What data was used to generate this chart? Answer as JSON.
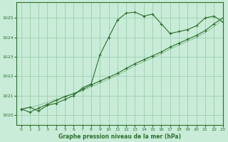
{
  "background_color": "#c8ecd8",
  "grid_color": "#9ecfb0",
  "line_color": "#2d6e2d",
  "title": "Graphe pression niveau de la mer (hPa)",
  "xlim": [
    -0.5,
    23
  ],
  "ylim": [
    1019.5,
    1025.8
  ],
  "yticks": [
    1020,
    1021,
    1022,
    1023,
    1024,
    1025
  ],
  "xticks": [
    0,
    1,
    2,
    3,
    4,
    5,
    6,
    7,
    8,
    9,
    10,
    11,
    12,
    13,
    14,
    15,
    16,
    17,
    18,
    19,
    20,
    21,
    22,
    23
  ],
  "series1_x": [
    0,
    1,
    2,
    3,
    4,
    5,
    6,
    7,
    8,
    9,
    10,
    11,
    12,
    13,
    14,
    15,
    16,
    17,
    18,
    19,
    20,
    21,
    22,
    23
  ],
  "series1_y": [
    1020.3,
    1020.4,
    1020.2,
    1020.5,
    1020.6,
    1020.8,
    1021.0,
    1021.4,
    1021.6,
    1023.1,
    1024.0,
    1024.9,
    1025.25,
    1025.3,
    1025.1,
    1025.2,
    1024.7,
    1024.2,
    1024.3,
    1024.4,
    1024.6,
    1025.0,
    1025.1,
    1024.8
  ],
  "series2_x": [
    0,
    1,
    2,
    3,
    4,
    5,
    6,
    7,
    8,
    9,
    10,
    11,
    12,
    13,
    14,
    15,
    16,
    17,
    18,
    19,
    20,
    21,
    22,
    23
  ],
  "series2_y": [
    1020.3,
    1020.15,
    1020.35,
    1020.55,
    1020.75,
    1020.95,
    1021.1,
    1021.3,
    1021.55,
    1021.75,
    1021.95,
    1022.15,
    1022.4,
    1022.65,
    1022.85,
    1023.05,
    1023.25,
    1023.5,
    1023.7,
    1023.9,
    1024.1,
    1024.35,
    1024.7,
    1025.0
  ],
  "series3_x": [
    0,
    1,
    2,
    3,
    4,
    5,
    6,
    7,
    8,
    9,
    10,
    11,
    12,
    13,
    14,
    15,
    16,
    17,
    18,
    19,
    20,
    21,
    22,
    23
  ],
  "series3_y": [
    1020.25,
    1020.4,
    1020.5,
    1020.65,
    1020.8,
    1020.95,
    1021.1,
    1021.25,
    1021.45,
    1021.65,
    1021.85,
    1022.05,
    1022.3,
    1022.55,
    1022.75,
    1022.95,
    1023.15,
    1023.4,
    1023.6,
    1023.8,
    1024.0,
    1024.25,
    1024.55,
    1024.9
  ]
}
